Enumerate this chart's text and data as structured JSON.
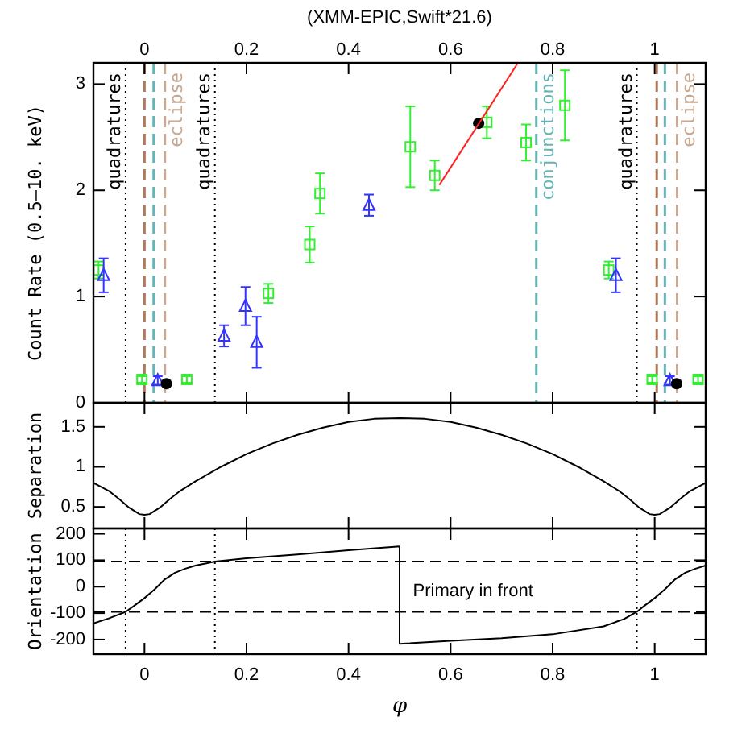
{
  "chart_data": [
    {
      "type": "scatter",
      "title": "(XMM-EPIC,Swift*21.6)",
      "ylabel": "Count Rate (0.5–10. keV)",
      "xlim": [
        -0.1,
        1.1
      ],
      "xticks": [
        0,
        0.2,
        0.4,
        0.6,
        0.8,
        1
      ],
      "x2lim": [
        -0.1,
        1.1
      ],
      "x2ticks": [
        0,
        0.2,
        0.4,
        0.6,
        0.8,
        1
      ],
      "ylim": [
        0,
        3.2
      ],
      "yticks": [
        0,
        1,
        2,
        3
      ],
      "tick_labels": "y",
      "grid": false,
      "series": [
        {
          "color": "#33ee33",
          "marker": "square",
          "x": [
            -0.09,
            -0.005,
            0.083,
            0.243,
            0.324,
            0.344,
            0.521,
            0.569,
            0.671,
            0.748,
            0.824,
            0.91,
            0.995,
            1.085
          ],
          "values": [
            1.25,
            0.22,
            0.22,
            1.03,
            1.49,
            1.97,
            2.41,
            2.14,
            2.64,
            2.45,
            2.8,
            1.25,
            0.22,
            0.22
          ],
          "errors": [
            0.08,
            0.03,
            0.03,
            0.09,
            0.17,
            0.19,
            0.38,
            0.14,
            0.15,
            0.17,
            0.33,
            0.08,
            0.03,
            0.03
          ]
        },
        {
          "color": "#3333ff",
          "marker": "triangle",
          "x": [
            -0.08,
            0.026,
            0.156,
            0.198,
            0.22,
            0.44,
            0.924,
            1.03
          ],
          "values": [
            1.2,
            0.21,
            0.63,
            0.91,
            0.57,
            1.86,
            1.2,
            0.21
          ],
          "errors": [
            0.16,
            0.04,
            0.1,
            0.18,
            0.24,
            0.1,
            0.16,
            0.04
          ]
        },
        {
          "color": "#000000",
          "marker": "circle",
          "x": [
            0.043,
            0.655,
            1.043
          ],
          "values": [
            0.18,
            2.63,
            0.18
          ]
        },
        {
          "type": "line",
          "color": "#ff2222",
          "marker": "none",
          "x": [
            0.578,
            0.732
          ],
          "values": [
            2.05,
            3.2
          ]
        }
      ],
      "ref_lines": [
        {
          "axis": "x",
          "value": -0.037,
          "color": "#000000",
          "line_style": "dotted",
          "label": "quadratures"
        },
        {
          "axis": "x",
          "value": 0.138,
          "color": "#000000",
          "line_style": "dotted",
          "label": "quadratures"
        },
        {
          "axis": "x",
          "value": 0.965,
          "color": "#000000",
          "line_style": "dotted",
          "label": "quadratures"
        },
        {
          "axis": "x",
          "value": 0,
          "color": "#b07858",
          "line_style": "dashed"
        },
        {
          "axis": "x",
          "value": 0.04,
          "color": "#c8a890",
          "line_style": "dashed",
          "label": "eclipse"
        },
        {
          "axis": "x",
          "value": 1.004,
          "color": "#b07858",
          "line_style": "dashed"
        },
        {
          "axis": "x",
          "value": 1.044,
          "color": "#c8a890",
          "line_style": "dashed",
          "label": "eclipse"
        },
        {
          "axis": "x",
          "value": 0.018,
          "color": "#66b4b4",
          "line_style": "dashed"
        },
        {
          "axis": "x",
          "value": 0.768,
          "color": "#66b4b4",
          "line_style": "dashed",
          "label": "conjunctions"
        },
        {
          "axis": "x",
          "value": 1.02,
          "color": "#66b4b4",
          "line_style": "dashed"
        }
      ]
    },
    {
      "type": "line",
      "ylabel": "Separation",
      "xlim": [
        -0.1,
        1.1
      ],
      "xticks": [
        0,
        0.2,
        0.4,
        0.6,
        0.8,
        1
      ],
      "ylim": [
        0.23,
        1.8
      ],
      "yticks": [
        0.5,
        1,
        1.5
      ],
      "tick_labels": "y",
      "grid": false,
      "series": [
        {
          "color": "#000000",
          "x": [
            -0.1,
            -0.07,
            -0.05,
            -0.03,
            -0.01,
            0,
            0.01,
            0.03,
            0.05,
            0.07,
            0.1,
            0.15,
            0.2,
            0.25,
            0.3,
            0.35,
            0.4,
            0.45,
            0.5,
            0.55,
            0.6,
            0.65,
            0.7,
            0.75,
            0.8,
            0.85,
            0.9,
            0.93,
            0.95,
            0.97,
            0.99,
            1,
            1.01,
            1.03,
            1.05,
            1.07,
            1.1
          ],
          "values": [
            0.8,
            0.7,
            0.6,
            0.49,
            0.41,
            0.4,
            0.41,
            0.49,
            0.6,
            0.7,
            0.82,
            1.0,
            1.16,
            1.29,
            1.4,
            1.49,
            1.56,
            1.6,
            1.61,
            1.6,
            1.56,
            1.49,
            1.4,
            1.29,
            1.16,
            1.0,
            0.82,
            0.7,
            0.6,
            0.49,
            0.41,
            0.4,
            0.41,
            0.49,
            0.6,
            0.7,
            0.8
          ]
        }
      ]
    },
    {
      "type": "line",
      "ylabel": "Orientation",
      "xlabel": "φ",
      "xlim": [
        -0.1,
        1.1
      ],
      "xticks": [
        0,
        0.2,
        0.4,
        0.6,
        0.8,
        1
      ],
      "ylim": [
        -255,
        220
      ],
      "yticks": [
        -200,
        -100,
        0,
        100,
        200
      ],
      "grid": false,
      "series": [
        {
          "color": "#000000",
          "x": [
            -0.1,
            -0.07,
            -0.037,
            -0.02,
            0,
            0.02,
            0.04,
            0.06,
            0.08,
            0.1,
            0.138,
            0.2,
            0.3,
            0.4,
            0.5,
            0.5,
            0.6,
            0.7,
            0.8,
            0.9,
            0.94,
            0.965,
            0.98,
            1,
            1.02,
            1.04,
            1.06,
            1.08,
            1.1
          ],
          "values": [
            -139,
            -120,
            -95,
            -72,
            -43,
            -10,
            28,
            53,
            68,
            80,
            95,
            107,
            122,
            138,
            152,
            -216,
            -205,
            -195,
            -180,
            -150,
            -122,
            -95,
            -72,
            -43,
            -10,
            28,
            53,
            68,
            80
          ]
        }
      ],
      "ref_lines": [
        {
          "axis": "y",
          "value": 95,
          "color": "#000000",
          "line_style": "dashed"
        },
        {
          "axis": "y",
          "value": -95,
          "color": "#000000",
          "line_style": "dashed"
        },
        {
          "axis": "x",
          "value": -0.037,
          "color": "#000000",
          "line_style": "dotted"
        },
        {
          "axis": "x",
          "value": 0.138,
          "color": "#000000",
          "line_style": "dotted"
        },
        {
          "axis": "x",
          "value": 0.965,
          "color": "#000000",
          "line_style": "dotted"
        }
      ],
      "annotations": [
        "Primary in front"
      ]
    }
  ]
}
